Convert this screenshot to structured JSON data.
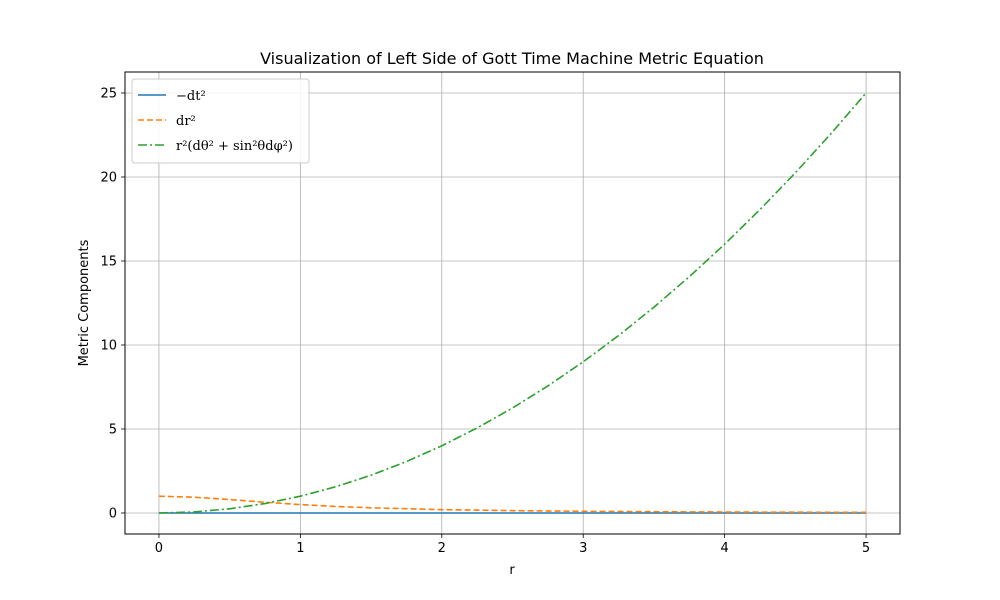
{
  "chart_data": {
    "type": "line",
    "title": "Visualization of Left Side of Gott Time Machine Metric Equation",
    "xlabel": "r",
    "ylabel": "Metric Components",
    "xlim": [
      -0.24,
      5.24
    ],
    "ylim": [
      -1.25,
      26.25
    ],
    "xticks": [
      0,
      1,
      2,
      3,
      4,
      5
    ],
    "yticks": [
      0,
      5,
      10,
      15,
      20,
      25
    ],
    "grid": true,
    "legend_position": "top-left",
    "series": [
      {
        "name": "−dt²",
        "color": "#1f77b4",
        "style": "solid",
        "x": [
          0,
          0.5,
          1,
          1.5,
          2,
          2.5,
          3,
          3.5,
          4,
          4.5,
          5
        ],
        "y": [
          0,
          0,
          0,
          0,
          0,
          0,
          0,
          0,
          0,
          0,
          0
        ]
      },
      {
        "name": "dr²",
        "color": "#ff7f0e",
        "style": "dashed",
        "x": [
          0,
          0.25,
          0.5,
          0.75,
          1,
          1.25,
          1.5,
          2,
          2.5,
          3,
          3.5,
          4,
          4.5,
          5
        ],
        "y": [
          1.0,
          0.94,
          0.8,
          0.64,
          0.5,
          0.39,
          0.31,
          0.2,
          0.14,
          0.1,
          0.075,
          0.059,
          0.047,
          0.038
        ]
      },
      {
        "name": "r²(dθ² + sin²θdφ²)",
        "color": "#2ca02c",
        "style": "dashdot",
        "x": [
          0,
          0.25,
          0.5,
          0.75,
          1,
          1.25,
          1.5,
          1.75,
          2,
          2.25,
          2.5,
          2.75,
          3,
          3.25,
          3.5,
          3.75,
          4,
          4.25,
          4.5,
          4.75,
          5
        ],
        "y": [
          0,
          0.0625,
          0.25,
          0.5625,
          1,
          1.5625,
          2.25,
          3.0625,
          4,
          5.0625,
          6.25,
          7.5625,
          9,
          10.5625,
          12.25,
          14.0625,
          16,
          18.0625,
          20.25,
          22.5625,
          25
        ]
      }
    ]
  }
}
